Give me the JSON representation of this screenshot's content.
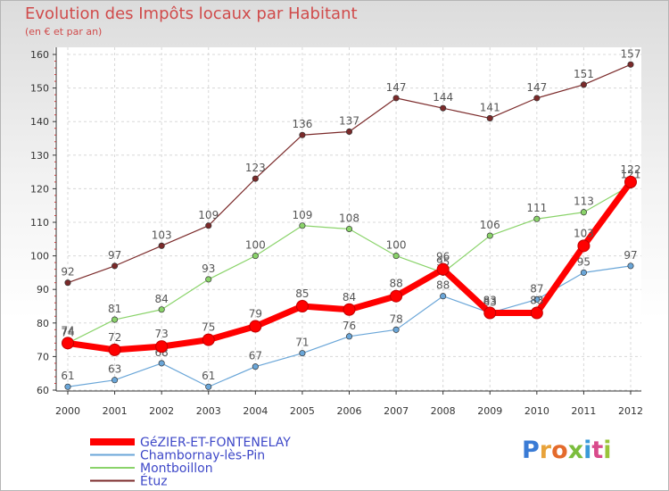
{
  "header": {
    "title": "Evolution des Impôts locaux par Habitant",
    "subtitle": "(en € et par an)"
  },
  "logo": {
    "text": "Proxiti"
  },
  "chart_data": {
    "type": "line",
    "title": "Evolution des Impôts locaux par Habitant",
    "subtitle": "(en € et par an)",
    "xlabel": "",
    "ylabel": "",
    "x": [
      "2000",
      "2001",
      "2002",
      "2003",
      "2004",
      "2005",
      "2006",
      "2007",
      "2008",
      "2009",
      "2010",
      "2011",
      "2012"
    ],
    "ylim": [
      60,
      160
    ],
    "yticks": [
      60,
      70,
      80,
      90,
      100,
      110,
      120,
      130,
      140,
      150,
      160
    ],
    "grid": true,
    "legend_position": "bottom-left",
    "series": [
      {
        "name": "Étuz",
        "color": "#7b2a2a",
        "values": [
          92,
          97,
          103,
          109,
          123,
          136,
          137,
          147,
          144,
          141,
          147,
          151,
          157
        ]
      },
      {
        "name": "Montboillon",
        "color": "#8ad36a",
        "values": [
          74,
          81,
          84,
          93,
          100,
          109,
          108,
          100,
          95,
          106,
          111,
          113,
          121
        ]
      },
      {
        "name": "Chambornay-lès-Pin",
        "color": "#6aa6d8",
        "values": [
          61,
          63,
          68,
          61,
          67,
          71,
          76,
          78,
          88,
          83,
          87,
          95,
          97
        ]
      },
      {
        "name": "GéZIER-ET-FONTENELAY",
        "color": "#ff0000",
        "values": [
          74,
          72,
          73,
          75,
          79,
          85,
          84,
          88,
          96,
          83,
          83,
          103,
          122
        ]
      }
    ]
  }
}
